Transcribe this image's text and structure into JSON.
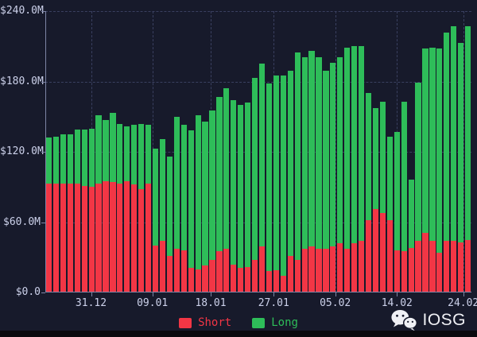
{
  "chart_data": {
    "type": "bar",
    "stacked": true,
    "units": "USD millions",
    "ylim": [
      0,
      240
    ],
    "grid": "dashed",
    "legend_position": "bottom-center",
    "y_ticks": [
      {
        "value": 0,
        "label": "$0.0"
      },
      {
        "value": 60,
        "label": "$60.0M"
      },
      {
        "value": 120,
        "label": "$120.0M"
      },
      {
        "value": 180,
        "label": "$180.0M"
      },
      {
        "value": 240,
        "label": "$240.0M"
      }
    ],
    "x_ticks": [
      {
        "label": "31.12",
        "pos_pct": 10.73
      },
      {
        "label": "09.01",
        "pos_pct": 25.13
      },
      {
        "label": "18.01",
        "pos_pct": 38.81
      },
      {
        "label": "27.01",
        "pos_pct": 53.6
      },
      {
        "label": "05.02",
        "pos_pct": 68.04
      },
      {
        "label": "14.02",
        "pos_pct": 82.52
      },
      {
        "label": "24.02",
        "pos_pct": 98.08
      }
    ],
    "series": [
      {
        "name": "Short",
        "color": "#f23645",
        "values": [
          93,
          93,
          93,
          93,
          93,
          91,
          90,
          93,
          95,
          94,
          93,
          95,
          92,
          88,
          93,
          40,
          44,
          31,
          37,
          36,
          21,
          20,
          23,
          28,
          35,
          37,
          24,
          21,
          22,
          28,
          39,
          18,
          19,
          14,
          31,
          28,
          37,
          39,
          37,
          37,
          39,
          42,
          37,
          42,
          44,
          62,
          71,
          68,
          62,
          36,
          35,
          38,
          44,
          51,
          44,
          34,
          44,
          44,
          43,
          45
        ]
      },
      {
        "name": "Long",
        "color": "#2ebd59",
        "values": [
          39,
          40,
          42,
          42,
          46,
          48,
          50,
          58,
          52,
          59,
          51,
          47,
          51,
          56,
          50,
          83,
          87,
          85,
          113,
          107,
          117,
          131,
          123,
          127,
          132,
          137,
          140,
          139,
          140,
          155,
          156,
          160,
          166,
          171,
          158,
          177,
          164,
          167,
          164,
          152,
          157,
          159,
          172,
          168,
          166,
          108,
          86,
          95,
          71,
          101,
          128,
          58,
          135,
          157,
          165,
          174,
          178,
          183,
          170,
          182
        ]
      }
    ]
  },
  "legend": {
    "short_label": "Short",
    "long_label": "Long"
  },
  "branding": {
    "logo_text": "IOSG",
    "icon": "wechat-icon"
  },
  "colors": {
    "background": "#171a2b",
    "grid": "#3a4060",
    "axis": "#7e85a6",
    "tick_label": "#ccd1ea",
    "short": "#f23645",
    "long": "#2ebd59",
    "watermark": "#f0f1f5",
    "bottom_strip": "#0a0a0e"
  }
}
